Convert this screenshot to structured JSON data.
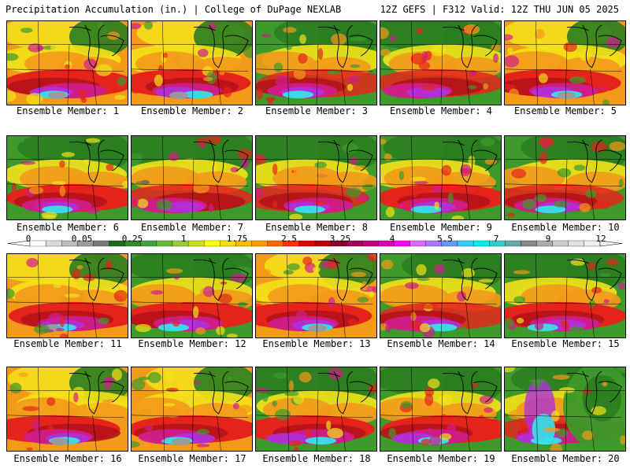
{
  "header": {
    "left": "Precipitation Accumulation (in.) | College of DuPage NEXLAB",
    "right": "12Z GEFS | F312 Valid: 12Z THU JUN 05 2025"
  },
  "colorbar": {
    "tick_labels": [
      "0",
      "0.05",
      "0.25",
      "1",
      "1.75",
      "2.5",
      "3.25",
      "4",
      "5.5",
      "7",
      "9",
      "12"
    ],
    "colors": [
      "#ffffff",
      "#d9d9d9",
      "#bdbdbd",
      "#9e9e9e",
      "#7b7b7b",
      "#1e6b1e",
      "#2e8b2e",
      "#3fa33f",
      "#66bb33",
      "#99cc33",
      "#ccdd22",
      "#ffff00",
      "#ffdd00",
      "#ffbb00",
      "#ff9900",
      "#ff6600",
      "#ff3300",
      "#e00000",
      "#b80000",
      "#8b0030",
      "#a0005a",
      "#c0007a",
      "#e000b0",
      "#ff00ff",
      "#dd66ff",
      "#aa77ff",
      "#6699ff",
      "#33ccff",
      "#00eeee",
      "#33cccc",
      "#66aaaa",
      "#888888",
      "#aaaaaa",
      "#cccccc",
      "#e0e0e0",
      "#f0f0f0"
    ]
  },
  "palette": {
    "green": "#3d9a2b",
    "dark_green": "#2a7d1f",
    "yellow": "#f4e21a",
    "orange": "#f39a19",
    "red": "#e4241b",
    "dark_red": "#b5121b",
    "magenta": "#d01c8b",
    "purple": "#b12fd9",
    "cyan": "#35e3e6",
    "gray": "#9a9a9a"
  },
  "members": [
    {
      "label": "Ensemble Member: 1",
      "theme": "wet"
    },
    {
      "label": "Ensemble Member: 2",
      "theme": "wet"
    },
    {
      "label": "Ensemble Member: 3",
      "theme": "north_dry"
    },
    {
      "label": "Ensemble Member: 4",
      "theme": "north_dry"
    },
    {
      "label": "Ensemble Member: 5",
      "theme": "wet"
    },
    {
      "label": "Ensemble Member: 6",
      "theme": "mixed"
    },
    {
      "label": "Ensemble Member: 7",
      "theme": "north_dry"
    },
    {
      "label": "Ensemble Member: 8",
      "theme": "north_dry"
    },
    {
      "label": "Ensemble Member: 9",
      "theme": "mixed"
    },
    {
      "label": "Ensemble Member: 10",
      "theme": "north_dry"
    },
    {
      "label": "Ensemble Member: 11",
      "theme": "wet"
    },
    {
      "label": "Ensemble Member: 12",
      "theme": "mixed"
    },
    {
      "label": "Ensemble Member: 13",
      "theme": "wet"
    },
    {
      "label": "Ensemble Member: 14",
      "theme": "north_dry"
    },
    {
      "label": "Ensemble Member: 15",
      "theme": "mixed"
    },
    {
      "label": "Ensemble Member: 16",
      "theme": "wet"
    },
    {
      "label": "Ensemble Member: 17",
      "theme": "wet"
    },
    {
      "label": "Ensemble Member: 18",
      "theme": "mixed"
    },
    {
      "label": "Ensemble Member: 19",
      "theme": "mixed"
    },
    {
      "label": "Ensemble Member: 20",
      "theme": "east_green"
    }
  ]
}
